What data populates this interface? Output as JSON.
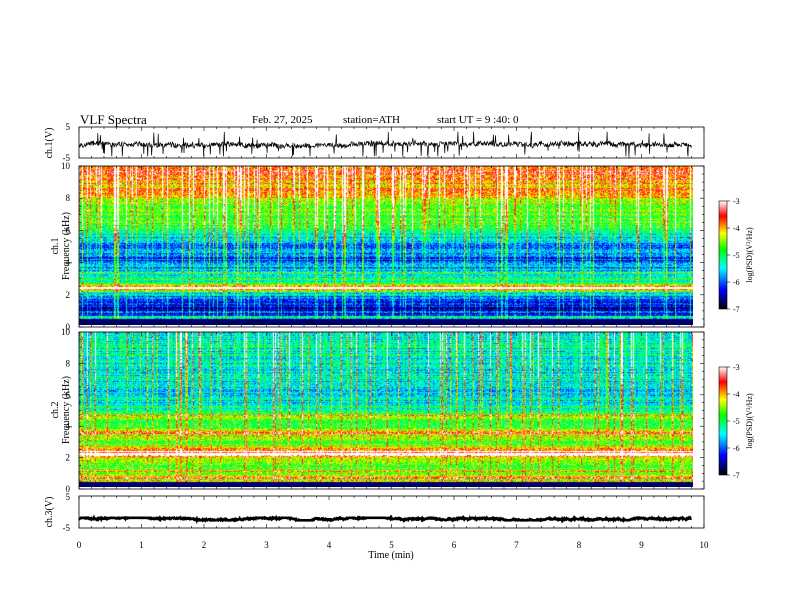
{
  "header": {
    "title": "VLF  Spectra",
    "date": "Feb. 27, 2025",
    "station": "station=ATH",
    "start": "start  UT  =   9 :40: 0"
  },
  "chart_data": [
    {
      "type": "line",
      "panel": "ch1-waveform",
      "ylabel": "ch.1(V)",
      "ylim": [
        -5,
        5
      ],
      "yticks": [
        "5",
        "-5"
      ],
      "xlim": [
        0,
        10
      ],
      "mean": -0.6,
      "note_range": [
        -4.5,
        3.5
      ]
    },
    {
      "type": "heatmap",
      "panel": "ch1-spectrogram",
      "ylabel": "ch.1\nFrequency (kHz)",
      "ylim": [
        0,
        10
      ],
      "yticks": [
        "0",
        "2",
        "4",
        "6",
        "8",
        "10"
      ],
      "xlim": [
        0,
        9.8
      ],
      "colorbar": {
        "label": "log(PSD)(V²/Hz)",
        "range": [
          -7,
          -3
        ],
        "ticks": [
          "-3",
          "-4",
          "-5",
          "-6",
          "-7"
        ]
      },
      "profile_freq_khz": [
        0.0,
        0.4,
        1.0,
        1.5,
        2.0,
        2.3,
        2.8,
        3.3,
        4.0,
        4.6,
        5.2,
        6.0,
        6.6,
        7.5,
        8.5,
        10.0
      ],
      "profile_log_psd": [
        -6.8,
        -5.9,
        -6.4,
        -6.3,
        -5.4,
        -3.6,
        -5.7,
        -5.4,
        -6.1,
        -6.0,
        -5.8,
        -5.0,
        -4.8,
        -4.5,
        -4.0,
        -3.5
      ]
    },
    {
      "type": "heatmap",
      "panel": "ch2-spectrogram",
      "ylabel": "ch.2\nFrequency (kHz)",
      "ylim": [
        0,
        10
      ],
      "yticks": [
        "0",
        "2",
        "4",
        "6",
        "8",
        "10"
      ],
      "xlim": [
        0,
        9.8
      ],
      "colorbar": {
        "label": "log(PSD)(V²/Hz)",
        "range": [
          -7,
          -3
        ],
        "ticks": [
          "-3",
          "-4",
          "-5",
          "-6",
          "-7"
        ]
      },
      "profile_freq_khz": [
        0.0,
        0.5,
        1.0,
        1.5,
        2.0,
        2.3,
        2.8,
        3.5,
        4.0,
        4.5,
        5.0,
        6.0,
        7.0,
        8.5,
        10.0
      ],
      "profile_log_psd": [
        -4.0,
        -4.3,
        -4.6,
        -4.7,
        -4.3,
        -3.4,
        -4.8,
        -4.2,
        -5.0,
        -4.5,
        -5.3,
        -5.6,
        -5.4,
        -5.3,
        -5.4
      ]
    },
    {
      "type": "line",
      "panel": "ch3-waveform",
      "ylabel": "ch.3(V)",
      "ylim": [
        -5,
        5
      ],
      "yticks": [
        "5",
        "-5"
      ],
      "xlim": [
        0,
        10
      ],
      "mean": -2.2,
      "note_range": [
        -2.6,
        -1.8
      ]
    }
  ],
  "xaxis": {
    "label": "Time  (min)",
    "ticks": [
      "0",
      "1",
      "2",
      "3",
      "4",
      "5",
      "6",
      "7",
      "8",
      "9",
      "10"
    ],
    "range": [
      0,
      10
    ]
  },
  "colors": {
    "colormap": [
      "#000000",
      "#0000ff",
      "#00ffff",
      "#00ff00",
      "#ffff00",
      "#ff0000",
      "#ffffff"
    ]
  }
}
